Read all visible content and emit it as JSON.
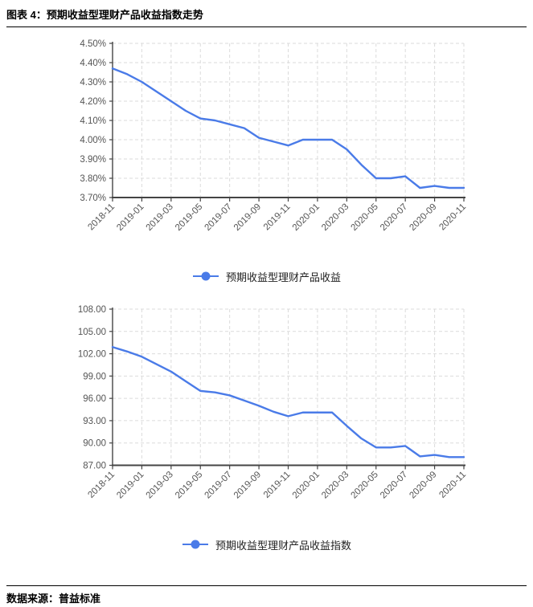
{
  "page": {
    "title": "图表 4：预期收益型理财产品收益指数走势",
    "source_label": "数据来源：",
    "source_name": "普益标准"
  },
  "colors": {
    "line": "#4A7BE8",
    "grid": "#DBDBDB",
    "axis": "#444444",
    "tick_text": "#555555"
  },
  "chart_data": [
    {
      "type": "line",
      "legend": "预期收益型理财产品收益",
      "legend_position": "bottom",
      "grid": true,
      "x": [
        "2018-11",
        "2018-12",
        "2019-01",
        "2019-02",
        "2019-03",
        "2019-04",
        "2019-05",
        "2019-06",
        "2019-07",
        "2019-08",
        "2019-09",
        "2019-10",
        "2019-11",
        "2019-12",
        "2020-01",
        "2020-02",
        "2020-03",
        "2020-04",
        "2020-05",
        "2020-06",
        "2020-07",
        "2020-08",
        "2020-09",
        "2020-10",
        "2020-11"
      ],
      "x_tick_labels": [
        "2018-11",
        "2019-01",
        "2019-03",
        "2019-05",
        "2019-07",
        "2019-09",
        "2019-11",
        "2020-01",
        "2020-03",
        "2020-05",
        "2020-07",
        "2020-09",
        "2020-11"
      ],
      "values": [
        4.37,
        4.34,
        4.3,
        4.25,
        4.2,
        4.15,
        4.11,
        4.1,
        4.08,
        4.06,
        4.01,
        3.99,
        3.97,
        4.0,
        4.0,
        4.0,
        3.95,
        3.87,
        3.8,
        3.8,
        3.81,
        3.75,
        3.76,
        3.75,
        3.75
      ],
      "ylim": [
        3.7,
        4.5
      ],
      "yticks": [
        4.5,
        4.4,
        4.3,
        4.2,
        4.1,
        4.0,
        3.9,
        3.8,
        3.7
      ],
      "ytick_labels": [
        "4.50%",
        "4.40%",
        "4.30%",
        "4.20%",
        "4.10%",
        "4.00%",
        "3.90%",
        "3.80%",
        "3.70%"
      ],
      "line_color": "#4A7BE8"
    },
    {
      "type": "line",
      "legend": "预期收益型理财产品收益指数",
      "legend_position": "bottom",
      "grid": true,
      "x": [
        "2018-11",
        "2018-12",
        "2019-01",
        "2019-02",
        "2019-03",
        "2019-04",
        "2019-05",
        "2019-06",
        "2019-07",
        "2019-08",
        "2019-09",
        "2019-10",
        "2019-11",
        "2019-12",
        "2020-01",
        "2020-02",
        "2020-03",
        "2020-04",
        "2020-05",
        "2020-06",
        "2020-07",
        "2020-08",
        "2020-09",
        "2020-10",
        "2020-11"
      ],
      "x_tick_labels": [
        "2018-11",
        "2019-01",
        "2019-03",
        "2019-05",
        "2019-07",
        "2019-09",
        "2019-11",
        "2020-01",
        "2020-03",
        "2020-05",
        "2020-07",
        "2020-09",
        "2020-11"
      ],
      "values": [
        102.9,
        102.3,
        101.6,
        100.6,
        99.6,
        98.3,
        97.0,
        96.8,
        96.4,
        95.7,
        95.0,
        94.2,
        93.6,
        94.1,
        94.1,
        94.1,
        92.3,
        90.6,
        89.4,
        89.4,
        89.6,
        88.2,
        88.4,
        88.1,
        88.1
      ],
      "ylim": [
        87.0,
        108.0
      ],
      "yticks": [
        108.0,
        105.0,
        102.0,
        99.0,
        96.0,
        93.0,
        90.0,
        87.0
      ],
      "ytick_labels": [
        "108.00",
        "105.00",
        "102.00",
        "99.00",
        "96.00",
        "93.00",
        "90.00",
        "87.00"
      ],
      "line_color": "#4A7BE8"
    }
  ]
}
